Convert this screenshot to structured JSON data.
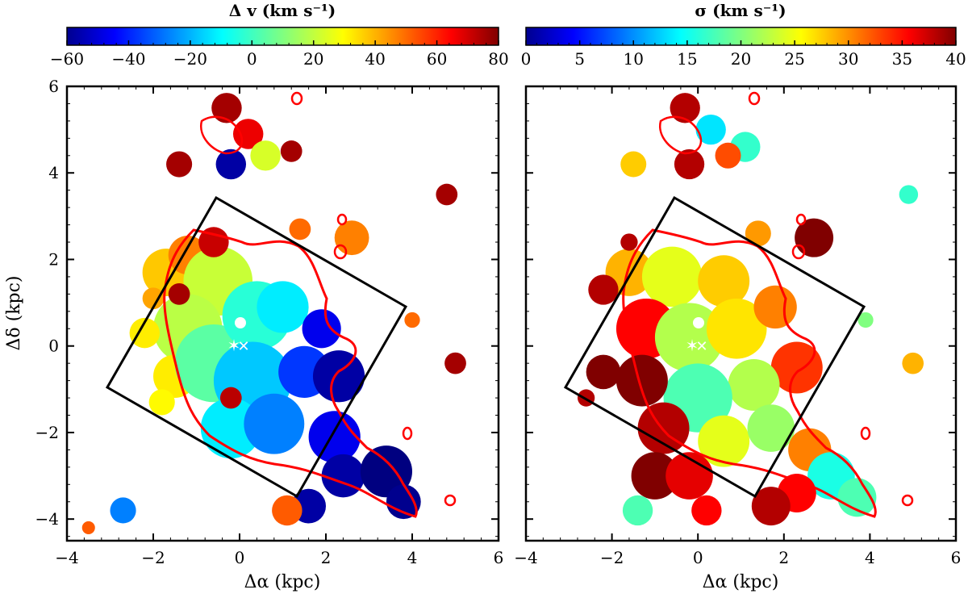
{
  "chart_data": [
    {
      "type": "heatmap",
      "title": "Δ v (km s⁻¹)",
      "xlabel": "Δα (kpc)",
      "ylabel": "Δδ (kpc)",
      "xlim": [
        -4,
        6
      ],
      "ylim": [
        -4.5,
        6
      ],
      "x_ticks": [
        -4,
        -2,
        0,
        2,
        4,
        6
      ],
      "y_ticks": [
        -4,
        -2,
        0,
        2,
        4,
        6
      ],
      "x_tick_labels": [
        "−4",
        "−2",
        "0",
        "2",
        "4",
        "6"
      ],
      "y_tick_labels": [
        "−4",
        "−2",
        "0",
        "2",
        "4",
        "6"
      ],
      "colorbar": {
        "label": "Δ v (km s⁻¹)",
        "range": [
          -60,
          80
        ],
        "ticks": [
          -60,
          -40,
          -20,
          0,
          20,
          40,
          60,
          80
        ],
        "tick_labels": [
          "−60",
          "−40",
          "−20",
          "0",
          "20",
          "40",
          "60",
          "80"
        ],
        "colormap": "jet"
      },
      "blobs": [
        {
          "x": -1.7,
          "y": 1.7,
          "r": 0.55,
          "value": 35
        },
        {
          "x": -1.2,
          "y": 2.1,
          "r": 0.45,
          "value": 45
        },
        {
          "x": -0.5,
          "y": 1.5,
          "r": 0.8,
          "value": 20
        },
        {
          "x": -1.2,
          "y": 0.4,
          "r": 0.8,
          "value": 18
        },
        {
          "x": -1.5,
          "y": -0.7,
          "r": 0.5,
          "value": 30
        },
        {
          "x": -0.6,
          "y": -0.4,
          "r": 0.9,
          "value": 5
        },
        {
          "x": 0.4,
          "y": 0.7,
          "r": 0.8,
          "value": -2
        },
        {
          "x": 1.0,
          "y": 0.9,
          "r": 0.6,
          "value": -10
        },
        {
          "x": 0.3,
          "y": -0.8,
          "r": 0.9,
          "value": -15
        },
        {
          "x": -0.2,
          "y": -1.9,
          "r": 0.7,
          "value": -10
        },
        {
          "x": 0.8,
          "y": -1.8,
          "r": 0.7,
          "value": -25
        },
        {
          "x": 1.5,
          "y": -0.6,
          "r": 0.6,
          "value": -35
        },
        {
          "x": 1.9,
          "y": 0.4,
          "r": 0.45,
          "value": -45
        },
        {
          "x": 2.3,
          "y": -0.7,
          "r": 0.6,
          "value": -55
        },
        {
          "x": 2.2,
          "y": -2.1,
          "r": 0.6,
          "value": -45
        },
        {
          "x": 2.4,
          "y": -3.0,
          "r": 0.5,
          "value": -55
        },
        {
          "x": 3.4,
          "y": -2.9,
          "r": 0.6,
          "value": -60
        },
        {
          "x": 3.8,
          "y": -3.6,
          "r": 0.4,
          "value": -58
        },
        {
          "x": 1.6,
          "y": -3.7,
          "r": 0.4,
          "value": -55
        },
        {
          "x": -0.6,
          "y": 2.4,
          "r": 0.35,
          "value": 70
        },
        {
          "x": -1.8,
          "y": -1.3,
          "r": 0.3,
          "value": 28
        },
        {
          "x": -0.2,
          "y": -1.2,
          "r": 0.25,
          "value": 72
        },
        {
          "x": -1.4,
          "y": 1.2,
          "r": 0.25,
          "value": 75
        },
        {
          "x": 2.6,
          "y": 2.5,
          "r": 0.4,
          "value": 45
        },
        {
          "x": 1.4,
          "y": 2.7,
          "r": 0.25,
          "value": 48
        },
        {
          "x": 4.0,
          "y": 0.6,
          "r": 0.18,
          "value": 48
        },
        {
          "x": 5.0,
          "y": -0.4,
          "r": 0.25,
          "value": 75
        },
        {
          "x": 4.8,
          "y": 3.5,
          "r": 0.25,
          "value": 75
        },
        {
          "x": 1.2,
          "y": 4.5,
          "r": 0.25,
          "value": 75
        },
        {
          "x": -1.4,
          "y": 4.2,
          "r": 0.3,
          "value": 75
        },
        {
          "x": -0.3,
          "y": 5.5,
          "r": 0.35,
          "value": 75
        },
        {
          "x": 0.2,
          "y": 4.9,
          "r": 0.35,
          "value": 65
        },
        {
          "x": 0.6,
          "y": 4.4,
          "r": 0.35,
          "value": 22
        },
        {
          "x": -0.2,
          "y": 4.2,
          "r": 0.35,
          "value": -55
        },
        {
          "x": -2.7,
          "y": -3.8,
          "r": 0.3,
          "value": -25
        },
        {
          "x": -3.5,
          "y": -4.2,
          "r": 0.15,
          "value": 50
        },
        {
          "x": 1.1,
          "y": -3.8,
          "r": 0.35,
          "value": 50
        },
        {
          "x": -2.2,
          "y": 0.3,
          "r": 0.35,
          "value": 30
        },
        {
          "x": -2.0,
          "y": 1.1,
          "r": 0.25,
          "value": 40
        }
      ]
    },
    {
      "type": "heatmap",
      "title": "σ (km s⁻¹)",
      "xlabel": "Δα (kpc)",
      "ylabel": "",
      "xlim": [
        -4,
        6
      ],
      "ylim": [
        -4.5,
        6
      ],
      "x_ticks": [
        -4,
        -2,
        0,
        2,
        4,
        6
      ],
      "y_ticks": [
        -4,
        -2,
        0,
        2,
        4,
        6
      ],
      "x_tick_labels": [
        "−4",
        "−2",
        "0",
        "2",
        "4",
        "6"
      ],
      "y_tick_labels": [],
      "colorbar": {
        "label": "σ (km s⁻¹)",
        "range": [
          0,
          40
        ],
        "ticks": [
          0,
          5,
          10,
          15,
          20,
          25,
          30,
          35,
          40
        ],
        "tick_labels": [
          "0",
          "5",
          "10",
          "15",
          "20",
          "25",
          "30",
          "35",
          "40"
        ],
        "colormap": "jet"
      },
      "blobs": [
        {
          "x": -1.6,
          "y": 1.7,
          "r": 0.55,
          "value": 28
        },
        {
          "x": -0.6,
          "y": 1.6,
          "r": 0.7,
          "value": 24
        },
        {
          "x": 0.6,
          "y": 1.5,
          "r": 0.6,
          "value": 27
        },
        {
          "x": -1.2,
          "y": 0.4,
          "r": 0.7,
          "value": 35
        },
        {
          "x": -0.2,
          "y": 0.2,
          "r": 0.8,
          "value": 22
        },
        {
          "x": 0.9,
          "y": 0.4,
          "r": 0.7,
          "value": 26
        },
        {
          "x": 1.8,
          "y": 0.9,
          "r": 0.5,
          "value": 30
        },
        {
          "x": 2.3,
          "y": -0.5,
          "r": 0.6,
          "value": 33
        },
        {
          "x": 1.3,
          "y": -0.9,
          "r": 0.6,
          "value": 22
        },
        {
          "x": 0.0,
          "y": -1.2,
          "r": 0.8,
          "value": 18
        },
        {
          "x": -1.3,
          "y": -0.8,
          "r": 0.6,
          "value": 40
        },
        {
          "x": -0.8,
          "y": -1.9,
          "r": 0.6,
          "value": 38
        },
        {
          "x": 0.6,
          "y": -2.2,
          "r": 0.6,
          "value": 24
        },
        {
          "x": 1.7,
          "y": -1.9,
          "r": 0.55,
          "value": 21
        },
        {
          "x": 2.6,
          "y": -2.4,
          "r": 0.5,
          "value": 30
        },
        {
          "x": 3.1,
          "y": -3.0,
          "r": 0.55,
          "value": 16
        },
        {
          "x": 3.7,
          "y": -3.5,
          "r": 0.45,
          "value": 18
        },
        {
          "x": 2.3,
          "y": -3.4,
          "r": 0.45,
          "value": 35
        },
        {
          "x": 1.7,
          "y": -3.7,
          "r": 0.45,
          "value": 38
        },
        {
          "x": -1.0,
          "y": -3.0,
          "r": 0.55,
          "value": 40
        },
        {
          "x": -1.4,
          "y": -3.8,
          "r": 0.35,
          "value": 18
        },
        {
          "x": 0.2,
          "y": -3.8,
          "r": 0.35,
          "value": 35
        },
        {
          "x": -0.2,
          "y": -3.0,
          "r": 0.55,
          "value": 36
        },
        {
          "x": 2.7,
          "y": 2.5,
          "r": 0.45,
          "value": 40
        },
        {
          "x": 1.4,
          "y": 2.6,
          "r": 0.3,
          "value": 29
        },
        {
          "x": 3.9,
          "y": 0.6,
          "r": 0.18,
          "value": 20
        },
        {
          "x": 5.0,
          "y": -0.4,
          "r": 0.25,
          "value": 28
        },
        {
          "x": 4.9,
          "y": 3.5,
          "r": 0.22,
          "value": 17
        },
        {
          "x": 1.1,
          "y": 4.6,
          "r": 0.35,
          "value": 17
        },
        {
          "x": -1.5,
          "y": 4.2,
          "r": 0.3,
          "value": 27
        },
        {
          "x": -0.3,
          "y": 5.5,
          "r": 0.35,
          "value": 38
        },
        {
          "x": 0.3,
          "y": 5.0,
          "r": 0.35,
          "value": 14
        },
        {
          "x": -0.2,
          "y": 4.2,
          "r": 0.35,
          "value": 38
        },
        {
          "x": 0.7,
          "y": 4.4,
          "r": 0.3,
          "value": 32
        },
        {
          "x": -2.2,
          "y": -0.6,
          "r": 0.4,
          "value": 40
        },
        {
          "x": -2.2,
          "y": 1.3,
          "r": 0.35,
          "value": 38
        },
        {
          "x": -2.6,
          "y": -1.2,
          "r": 0.2,
          "value": 38
        },
        {
          "x": -1.6,
          "y": 2.4,
          "r": 0.2,
          "value": 38
        }
      ]
    }
  ]
}
